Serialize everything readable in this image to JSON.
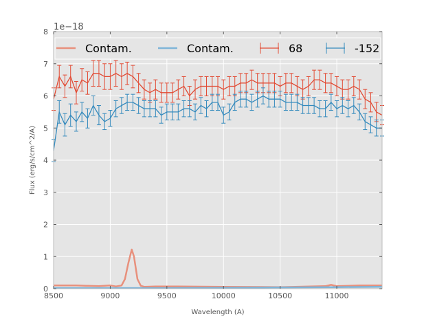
{
  "chart_data": {
    "type": "line",
    "title": "",
    "xlabel": "Wavelength (A)",
    "ylabel": "Flux (erg/s/cm^2/A)",
    "y_offset_label": "1e−18",
    "xlim": [
      8500,
      11400
    ],
    "ylim": [
      0,
      8
    ],
    "x_ticks": [
      8500,
      9000,
      9500,
      10000,
      10500,
      11000
    ],
    "y_ticks": [
      0,
      1,
      2,
      3,
      4,
      5,
      6,
      7,
      8
    ],
    "grid": true,
    "legend_position": "top",
    "colors": {
      "red": "#e24a33",
      "blue": "#348abd",
      "contam_red": "#e8907c",
      "contam_blue": "#7fb5d8",
      "background": "#e5e5e5"
    },
    "legend": [
      {
        "label": "Contam.",
        "style": "line",
        "color": "#e8907c"
      },
      {
        "label": "Contam.",
        "style": "line",
        "color": "#7fb5d8"
      },
      {
        "label": "68",
        "style": "errorbar",
        "color": "#e24a33"
      },
      {
        "label": "-152",
        "style": "errorbar",
        "color": "#348abd"
      }
    ],
    "series": [
      {
        "name": "68",
        "style": "errorbar",
        "color": "#e24a33",
        "x": [
          8500,
          8550,
          8600,
          8650,
          8700,
          8750,
          8800,
          8850,
          8900,
          8950,
          9000,
          9050,
          9100,
          9150,
          9200,
          9250,
          9300,
          9350,
          9400,
          9450,
          9500,
          9550,
          9600,
          9650,
          9700,
          9750,
          9800,
          9850,
          9900,
          9950,
          10000,
          10050,
          10100,
          10150,
          10200,
          10250,
          10300,
          10350,
          10400,
          10450,
          10500,
          10550,
          10600,
          10650,
          10700,
          10750,
          10800,
          10850,
          10900,
          10950,
          11000,
          11050,
          11100,
          11150,
          11200,
          11250,
          11300,
          11350,
          11400
        ],
        "y": [
          5.9,
          6.6,
          6.3,
          6.6,
          6.1,
          6.5,
          6.4,
          6.7,
          6.7,
          6.6,
          6.6,
          6.7,
          6.6,
          6.7,
          6.6,
          6.4,
          6.2,
          6.1,
          6.2,
          6.1,
          6.1,
          6.1,
          6.2,
          6.3,
          6.0,
          6.2,
          6.3,
          6.3,
          6.3,
          6.3,
          6.2,
          6.3,
          6.3,
          6.4,
          6.4,
          6.5,
          6.4,
          6.4,
          6.4,
          6.4,
          6.3,
          6.4,
          6.4,
          6.3,
          6.2,
          6.3,
          6.5,
          6.5,
          6.4,
          6.4,
          6.3,
          6.2,
          6.2,
          6.3,
          6.2,
          5.9,
          5.8,
          5.5,
          5.4
        ],
        "err": [
          0.35,
          0.35,
          0.35,
          0.35,
          0.35,
          0.35,
          0.35,
          0.4,
          0.4,
          0.4,
          0.4,
          0.4,
          0.4,
          0.35,
          0.35,
          0.3,
          0.3,
          0.3,
          0.3,
          0.3,
          0.3,
          0.3,
          0.3,
          0.3,
          0.3,
          0.3,
          0.3,
          0.3,
          0.3,
          0.3,
          0.3,
          0.3,
          0.3,
          0.3,
          0.3,
          0.3,
          0.3,
          0.3,
          0.3,
          0.3,
          0.3,
          0.3,
          0.3,
          0.3,
          0.3,
          0.3,
          0.3,
          0.3,
          0.3,
          0.3,
          0.3,
          0.3,
          0.3,
          0.3,
          0.3,
          0.3,
          0.3,
          0.3,
          0.3
        ]
      },
      {
        "name": "-152",
        "style": "errorbar",
        "color": "#348abd",
        "x": [
          8500,
          8550,
          8600,
          8650,
          8700,
          8750,
          8800,
          8850,
          8900,
          8950,
          9000,
          9050,
          9100,
          9150,
          9200,
          9250,
          9300,
          9350,
          9400,
          9450,
          9500,
          9550,
          9600,
          9650,
          9700,
          9750,
          9800,
          9850,
          9900,
          9950,
          10000,
          10050,
          10100,
          10150,
          10200,
          10250,
          10300,
          10350,
          10400,
          10450,
          10500,
          10550,
          10600,
          10650,
          10700,
          10750,
          10800,
          10850,
          10900,
          10950,
          11000,
          11050,
          11100,
          11150,
          11200,
          11250,
          11300,
          11350,
          11400
        ],
        "y": [
          4.3,
          5.5,
          5.1,
          5.4,
          5.2,
          5.5,
          5.3,
          5.7,
          5.4,
          5.2,
          5.3,
          5.6,
          5.7,
          5.8,
          5.8,
          5.7,
          5.6,
          5.6,
          5.6,
          5.4,
          5.5,
          5.5,
          5.5,
          5.6,
          5.6,
          5.5,
          5.7,
          5.6,
          5.8,
          5.8,
          5.4,
          5.5,
          5.8,
          5.9,
          5.9,
          5.8,
          5.9,
          6.0,
          5.9,
          5.9,
          5.9,
          5.8,
          5.8,
          5.8,
          5.7,
          5.7,
          5.7,
          5.6,
          5.6,
          5.8,
          5.6,
          5.7,
          5.6,
          5.7,
          5.5,
          5.2,
          5.1,
          5.0,
          5.0
        ],
        "err": [
          0.35,
          0.35,
          0.35,
          0.35,
          0.3,
          0.3,
          0.3,
          0.3,
          0.3,
          0.25,
          0.25,
          0.25,
          0.25,
          0.25,
          0.25,
          0.25,
          0.25,
          0.25,
          0.25,
          0.25,
          0.25,
          0.25,
          0.25,
          0.25,
          0.25,
          0.25,
          0.25,
          0.25,
          0.25,
          0.25,
          0.25,
          0.25,
          0.25,
          0.25,
          0.25,
          0.25,
          0.25,
          0.25,
          0.25,
          0.25,
          0.25,
          0.25,
          0.25,
          0.25,
          0.25,
          0.25,
          0.25,
          0.25,
          0.25,
          0.25,
          0.25,
          0.25,
          0.25,
          0.25,
          0.25,
          0.25,
          0.25,
          0.25,
          0.25
        ]
      },
      {
        "name": "Contam.",
        "style": "line",
        "color": "#e8907c",
        "x": [
          8500,
          8700,
          8900,
          9000,
          9050,
          9100,
          9130,
          9160,
          9190,
          9210,
          9240,
          9270,
          9300,
          9400,
          9600,
          10000,
          10500,
          10900,
          10950,
          11000,
          11200,
          11400
        ],
        "y": [
          0.1,
          0.1,
          0.08,
          0.1,
          0.07,
          0.1,
          0.3,
          0.8,
          1.22,
          1.0,
          0.3,
          0.09,
          0.06,
          0.07,
          0.07,
          0.06,
          0.05,
          0.08,
          0.12,
          0.08,
          0.1,
          0.1
        ]
      },
      {
        "name": "Contam.",
        "style": "line",
        "color": "#7fb5d8",
        "x": [
          8500,
          9000,
          9500,
          10000,
          10500,
          11000,
          11400
        ],
        "y": [
          0.02,
          0.02,
          0.02,
          0.03,
          0.04,
          0.05,
          0.06
        ]
      }
    ]
  }
}
